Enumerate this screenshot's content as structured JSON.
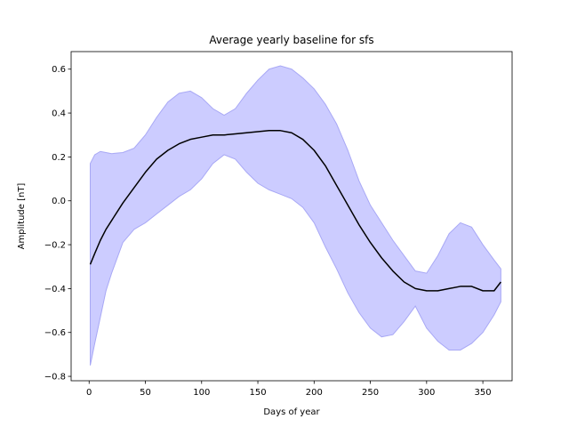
{
  "chart_data": {
    "type": "line",
    "title": "Average yearly baseline for sfs",
    "xlabel": "Days of year",
    "ylabel": "Amplitude [nT]",
    "xlim": [
      -16,
      376
    ],
    "ylim": [
      -0.82,
      0.68
    ],
    "x_ticks": [
      0,
      50,
      100,
      150,
      200,
      250,
      300,
      350
    ],
    "x_tick_labels": [
      "0",
      "50",
      "100",
      "150",
      "200",
      "250",
      "300",
      "350"
    ],
    "y_ticks": [
      -0.8,
      -0.6,
      -0.4,
      -0.2,
      0.0,
      0.2,
      0.4,
      0.6
    ],
    "y_tick_labels": [
      "−0.8",
      "−0.6",
      "−0.4",
      "−0.2",
      "0.0",
      "0.2",
      "0.4",
      "0.6"
    ],
    "grid": false,
    "legend": "none",
    "colors": {
      "mean_line": "#000000",
      "band_fill": "#ccccff",
      "band_edge": "#a8a8f5"
    },
    "series": [
      {
        "kind": "line",
        "x": [
          1,
          5,
          10,
          15,
          20,
          30,
          40,
          50,
          60,
          70,
          80,
          90,
          100,
          110,
          120,
          130,
          140,
          150,
          160,
          170,
          180,
          190,
          200,
          210,
          220,
          230,
          240,
          250,
          260,
          270,
          280,
          290,
          300,
          310,
          320,
          330,
          340,
          350,
          360,
          366
        ],
        "values": [
          -0.29,
          -0.24,
          -0.18,
          -0.13,
          -0.09,
          -0.01,
          0.06,
          0.13,
          0.19,
          0.23,
          0.26,
          0.28,
          0.29,
          0.3,
          0.3,
          0.305,
          0.31,
          0.315,
          0.32,
          0.32,
          0.31,
          0.28,
          0.23,
          0.16,
          0.07,
          -0.02,
          -0.11,
          -0.19,
          -0.26,
          -0.32,
          -0.37,
          -0.4,
          -0.41,
          -0.41,
          -0.4,
          -0.39,
          -0.39,
          -0.41,
          -0.41,
          -0.37
        ]
      },
      {
        "kind": "band",
        "x": [
          1,
          5,
          10,
          15,
          20,
          30,
          40,
          50,
          60,
          70,
          80,
          90,
          100,
          110,
          120,
          130,
          140,
          150,
          160,
          170,
          180,
          190,
          200,
          210,
          220,
          230,
          240,
          250,
          260,
          270,
          280,
          290,
          300,
          310,
          320,
          330,
          340,
          350,
          360,
          366
        ],
        "upper": [
          0.17,
          0.21,
          0.225,
          0.22,
          0.215,
          0.22,
          0.24,
          0.3,
          0.38,
          0.45,
          0.49,
          0.5,
          0.47,
          0.42,
          0.39,
          0.42,
          0.49,
          0.55,
          0.6,
          0.615,
          0.6,
          0.56,
          0.51,
          0.44,
          0.35,
          0.23,
          0.09,
          -0.02,
          -0.1,
          -0.18,
          -0.25,
          -0.32,
          -0.33,
          -0.25,
          -0.15,
          -0.1,
          -0.12,
          -0.2,
          -0.27,
          -0.31
        ],
        "lower": [
          -0.75,
          -0.65,
          -0.53,
          -0.41,
          -0.33,
          -0.19,
          -0.13,
          -0.1,
          -0.06,
          -0.02,
          0.02,
          0.05,
          0.1,
          0.17,
          0.21,
          0.19,
          0.13,
          0.08,
          0.05,
          0.03,
          0.01,
          -0.03,
          -0.1,
          -0.21,
          -0.31,
          -0.42,
          -0.51,
          -0.58,
          -0.62,
          -0.61,
          -0.55,
          -0.48,
          -0.58,
          -0.64,
          -0.68,
          -0.68,
          -0.65,
          -0.6,
          -0.52,
          -0.46
        ]
      }
    ]
  }
}
